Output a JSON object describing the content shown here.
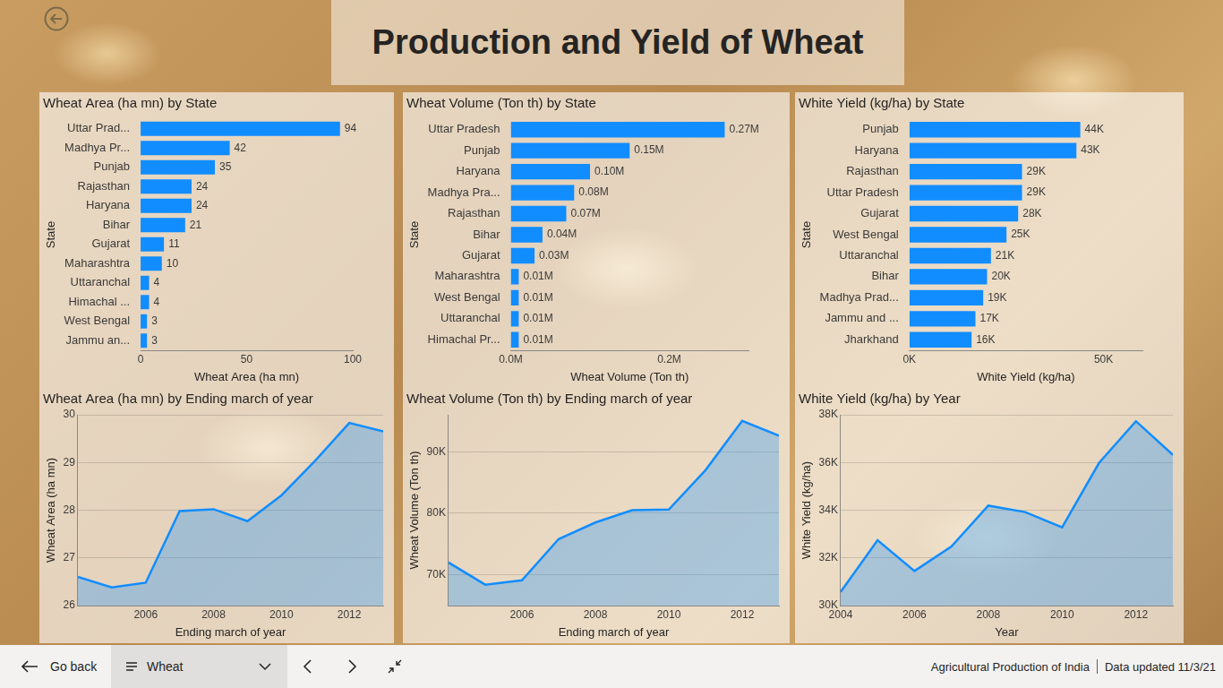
{
  "header": {
    "title": "Production and Yield of Wheat"
  },
  "footer": {
    "back": "Go back",
    "page": "Wheat",
    "report": "Agricultural Production of India",
    "updated": "Data updated 11/3/21"
  },
  "chart_data": [
    {
      "type": "bar",
      "orientation": "horizontal",
      "title": "Wheat Area (ha mn) by State",
      "x_label": "Wheat Area (ha mn)",
      "y_label": "State",
      "categories": [
        "Uttar Prad...",
        "Madhya Pr...",
        "Punjab",
        "Rajasthan",
        "Haryana",
        "Bihar",
        "Gujarat",
        "Maharashtra",
        "Uttaranchal",
        "Himachal ...",
        "West Bengal",
        "Jammu an..."
      ],
      "values": [
        94,
        42,
        35,
        24,
        24,
        21,
        11,
        10,
        4,
        4,
        3,
        3
      ],
      "color": "#118dff",
      "xlim": [
        0,
        100
      ],
      "xticks": [
        0,
        50,
        100
      ],
      "grid": false,
      "data_labels": true
    },
    {
      "type": "bar",
      "orientation": "horizontal",
      "title": "Wheat Volume (Ton th) by State",
      "x_label": "Wheat Volume (Ton th)",
      "y_label": "State",
      "categories": [
        "Uttar Pradesh",
        "Punjab",
        "Haryana",
        "Madhya Pra...",
        "Rajasthan",
        "Bihar",
        "Gujarat",
        "Maharashtra",
        "West Bengal",
        "Uttaranchal",
        "Himachal Pr..."
      ],
      "values": [
        270000,
        150000,
        100000,
        80000,
        70000,
        40000,
        30000,
        10000,
        10000,
        10000,
        10000
      ],
      "value_labels": [
        "0.27M",
        "0.15M",
        "0.10M",
        "0.08M",
        "0.07M",
        "0.04M",
        "0.03M",
        "0.01M",
        "0.01M",
        "0.01M",
        "0.01M"
      ],
      "color": "#118dff",
      "xlim": [
        0,
        300000
      ],
      "xticks": [
        {
          "value": 0,
          "label": "0.0M"
        },
        {
          "value": 200000,
          "label": "0.2M"
        }
      ],
      "grid": false,
      "data_labels": true
    },
    {
      "type": "bar",
      "orientation": "horizontal",
      "title": "White Yield (kg/ha) by State",
      "x_label": "White Yield (kg/ha)",
      "y_label": "State",
      "categories": [
        "Punjab",
        "Haryana",
        "Rajasthan",
        "Uttar Pradesh",
        "Gujarat",
        "West Bengal",
        "Uttaranchal",
        "Bihar",
        "Madhya Prad...",
        "Jammu and ...",
        "Jharkhand"
      ],
      "values": [
        44000,
        43000,
        29000,
        29000,
        28000,
        25000,
        21000,
        20000,
        19000,
        17000,
        16000
      ],
      "value_labels": [
        "44K",
        "43K",
        "29K",
        "29K",
        "28K",
        "25K",
        "21K",
        "20K",
        "19K",
        "17K",
        "16K"
      ],
      "color": "#118dff",
      "xlim": [
        0,
        60000
      ],
      "xticks": [
        {
          "value": 0,
          "label": "0K"
        },
        {
          "value": 50000,
          "label": "50K"
        }
      ],
      "grid": false,
      "data_labels": true
    },
    {
      "type": "area",
      "title": "Wheat Area (ha mn) by Ending march of year",
      "x_label": "Ending march of year",
      "y_label": "Wheat Area (ha mn)",
      "x": [
        2004,
        2005,
        2006,
        2007,
        2008,
        2009,
        2010,
        2011,
        2012,
        2013
      ],
      "values": [
        26.6,
        26.38,
        26.48,
        27.98,
        28.02,
        27.77,
        28.31,
        29.04,
        29.83,
        29.65
      ],
      "color": "#118dff",
      "xlim": [
        2004,
        2013
      ],
      "xticks": [
        2006,
        2008,
        2010,
        2012
      ],
      "ylim": [
        26,
        30
      ],
      "yticks": [
        26,
        27,
        28,
        29,
        30
      ],
      "grid": true
    },
    {
      "type": "area",
      "title": "Wheat Volume (Ton th) by Ending march of year",
      "x_label": "Ending march of year",
      "y_label": "Wheat Volume (Ton th)",
      "x": [
        2004,
        2005,
        2006,
        2007,
        2008,
        2009,
        2010,
        2011,
        2012,
        2013
      ],
      "values": [
        72000,
        68400,
        69100,
        75800,
        78500,
        80500,
        80600,
        87000,
        95000,
        92600
      ],
      "color": "#118dff",
      "xlim": [
        2004,
        2013
      ],
      "xticks": [
        2006,
        2008,
        2010,
        2012
      ],
      "ylim": [
        65000,
        96000
      ],
      "yticks": [
        {
          "value": 70000,
          "label": "70K"
        },
        {
          "value": 80000,
          "label": "80K"
        },
        {
          "value": 90000,
          "label": "90K"
        }
      ],
      "grid": true
    },
    {
      "type": "area",
      "title": "White Yield (kg/ha) by Year",
      "x_label": "Year",
      "y_label": "White Yield (kg/ha)",
      "x": [
        2004,
        2005,
        2006,
        2007,
        2008,
        2009,
        2010,
        2011,
        2012,
        2013
      ],
      "values": [
        30570,
        32740,
        31450,
        32480,
        34190,
        33920,
        33280,
        35980,
        37730,
        36320
      ],
      "color": "#118dff",
      "xlim": [
        2004,
        2013
      ],
      "xticks": [
        2004,
        2006,
        2008,
        2010,
        2012
      ],
      "ylim": [
        30000,
        38000
      ],
      "yticks": [
        {
          "value": 30000,
          "label": "30K"
        },
        {
          "value": 32000,
          "label": "32K"
        },
        {
          "value": 34000,
          "label": "34K"
        },
        {
          "value": 36000,
          "label": "36K"
        },
        {
          "value": 38000,
          "label": "38K"
        }
      ],
      "grid": true
    }
  ]
}
